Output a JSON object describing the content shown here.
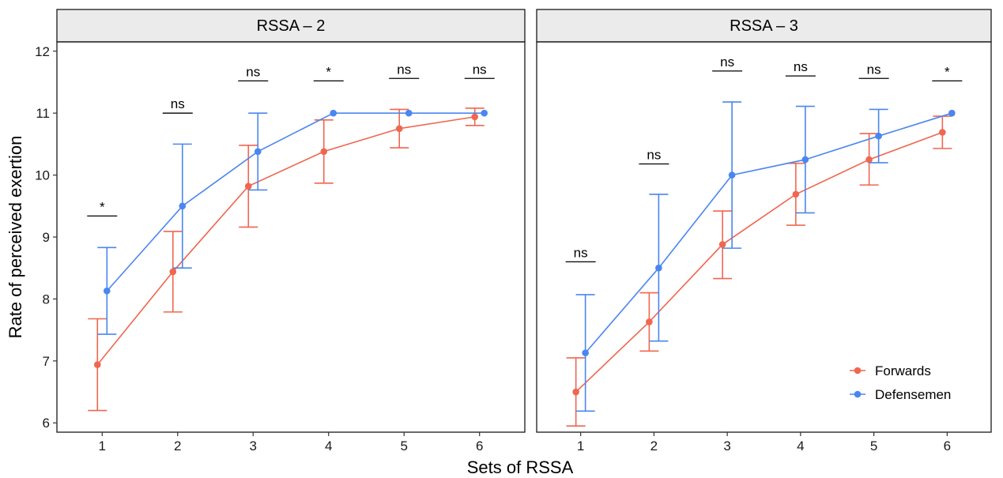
{
  "chart_data": {
    "type": "line",
    "xlabel": "Sets of RSSA",
    "ylabel": "Rate of perceived exertion",
    "ylim": [
      5.85,
      12.15
    ],
    "yticks": [
      6,
      7,
      8,
      9,
      10,
      11,
      12
    ],
    "xticks": [
      "1",
      "2",
      "3",
      "4",
      "5",
      "6"
    ],
    "colors": {
      "Forwards": "#F0664F",
      "Defensemen": "#4A86F0"
    },
    "legend": {
      "position": "bottom-right",
      "panel": 1,
      "entries": [
        "Forwards",
        "Defensemen"
      ]
    },
    "panels": [
      {
        "title": "RSSA – 2",
        "series": [
          {
            "name": "Forwards",
            "x": [
              1,
              2,
              3,
              4,
              5,
              6
            ],
            "y": [
              6.94,
              8.44,
              9.82,
              10.38,
              10.75,
              10.94
            ],
            "lower": [
              6.2,
              7.79,
              9.16,
              9.87,
              10.44,
              10.8
            ],
            "upper": [
              7.68,
              9.09,
              10.48,
              10.89,
              11.06,
              11.08
            ]
          },
          {
            "name": "Defensemen",
            "x": [
              1,
              2,
              3,
              4,
              5,
              6
            ],
            "y": [
              8.13,
              9.5,
              10.38,
              11.0,
              11.0,
              11.0
            ],
            "lower": [
              7.43,
              8.5,
              9.76,
              11.0,
              11.0,
              11.0
            ],
            "upper": [
              8.83,
              10.5,
              11.0,
              11.0,
              11.0,
              11.0
            ]
          }
        ],
        "significance": [
          {
            "x": 1,
            "label": "*",
            "y": 9.34
          },
          {
            "x": 2,
            "label": "ns",
            "y": 11.0
          },
          {
            "x": 3,
            "label": "ns",
            "y": 11.52
          },
          {
            "x": 4,
            "label": "*",
            "y": 11.52
          },
          {
            "x": 5,
            "label": "ns",
            "y": 11.56
          },
          {
            "x": 6,
            "label": "ns",
            "y": 11.56
          }
        ]
      },
      {
        "title": "RSSA – 3",
        "series": [
          {
            "name": "Forwards",
            "x": [
              1,
              2,
              3,
              4,
              5,
              6
            ],
            "y": [
              6.5,
              7.63,
              8.88,
              9.69,
              10.25,
              10.69
            ],
            "lower": [
              5.95,
              7.16,
              8.33,
              9.19,
              9.84,
              10.43
            ],
            "upper": [
              7.05,
              8.1,
              9.42,
              10.19,
              10.67,
              10.95
            ]
          },
          {
            "name": "Defensemen",
            "x": [
              1,
              2,
              3,
              4,
              5,
              6
            ],
            "y": [
              7.13,
              8.5,
              10.0,
              10.25,
              10.63,
              11.0
            ],
            "lower": [
              6.19,
              7.32,
              8.82,
              9.39,
              10.2,
              11.0
            ],
            "upper": [
              8.07,
              9.69,
              11.18,
              11.11,
              11.06,
              11.0
            ]
          }
        ],
        "significance": [
          {
            "x": 1,
            "label": "ns",
            "y": 8.6
          },
          {
            "x": 2,
            "label": "ns",
            "y": 10.18
          },
          {
            "x": 3,
            "label": "ns",
            "y": 11.68
          },
          {
            "x": 4,
            "label": "ns",
            "y": 11.6
          },
          {
            "x": 5,
            "label": "ns",
            "y": 11.56
          },
          {
            "x": 6,
            "label": "*",
            "y": 11.52
          }
        ]
      }
    ]
  }
}
